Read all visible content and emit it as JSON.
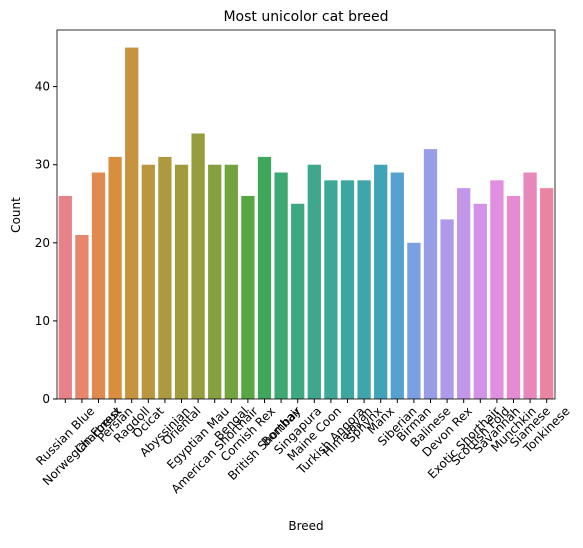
{
  "chart_data": {
    "type": "bar",
    "title": "Most unicolor cat breed",
    "x_label": "Breed",
    "y_label": "Count",
    "categories": [
      "Russian Blue",
      "Norwegian Forest",
      "Chartreux",
      "Persian",
      "Ragdoll",
      "Ocicat",
      "Abyssinian",
      "Oriental",
      "Egyptian Mau",
      "American Shorthair",
      "Bengal",
      "Cornish Rex",
      "British Shorthair",
      "Bombay",
      "Singapura",
      "Maine Coon",
      "Turkish Angora",
      "Himalayan",
      "Sphynx",
      "Manx",
      "Siberian",
      "Birman",
      "Balinese",
      "Devon Rex",
      "Exotic Shorthair",
      "Scottish Fold",
      "Savannah",
      "Munchkin",
      "Siamese",
      "Tonkinese"
    ],
    "values": [
      26,
      21,
      29,
      31,
      45,
      30,
      31,
      30,
      34,
      30,
      30,
      26,
      31,
      29,
      25,
      30,
      28,
      28,
      28,
      30,
      29,
      20,
      32,
      23,
      27,
      25,
      28,
      26,
      29,
      27
    ],
    "colors": [
      "#e8828a",
      "#e6866c",
      "#e18a50",
      "#d98e3e",
      "#c8933e",
      "#bb963e",
      "#ad993e",
      "#a19b3e",
      "#959d3e",
      "#86a03e",
      "#73a33e",
      "#58a643",
      "#3ea75c",
      "#3ea872",
      "#3ea882",
      "#3ea78e",
      "#3ea798",
      "#3ea6a1",
      "#3ea5aa",
      "#3fa4b8",
      "#55a2d0",
      "#7a9fe2",
      "#989de8",
      "#ae9ae9",
      "#c296e8",
      "#d392e6",
      "#e08ee0",
      "#e68ad2",
      "#e887bc",
      "#e985a3"
    ],
    "ylim": [
      0,
      47.25
    ],
    "yticks": [
      0,
      10,
      20,
      30,
      40
    ],
    "grid": false
  }
}
